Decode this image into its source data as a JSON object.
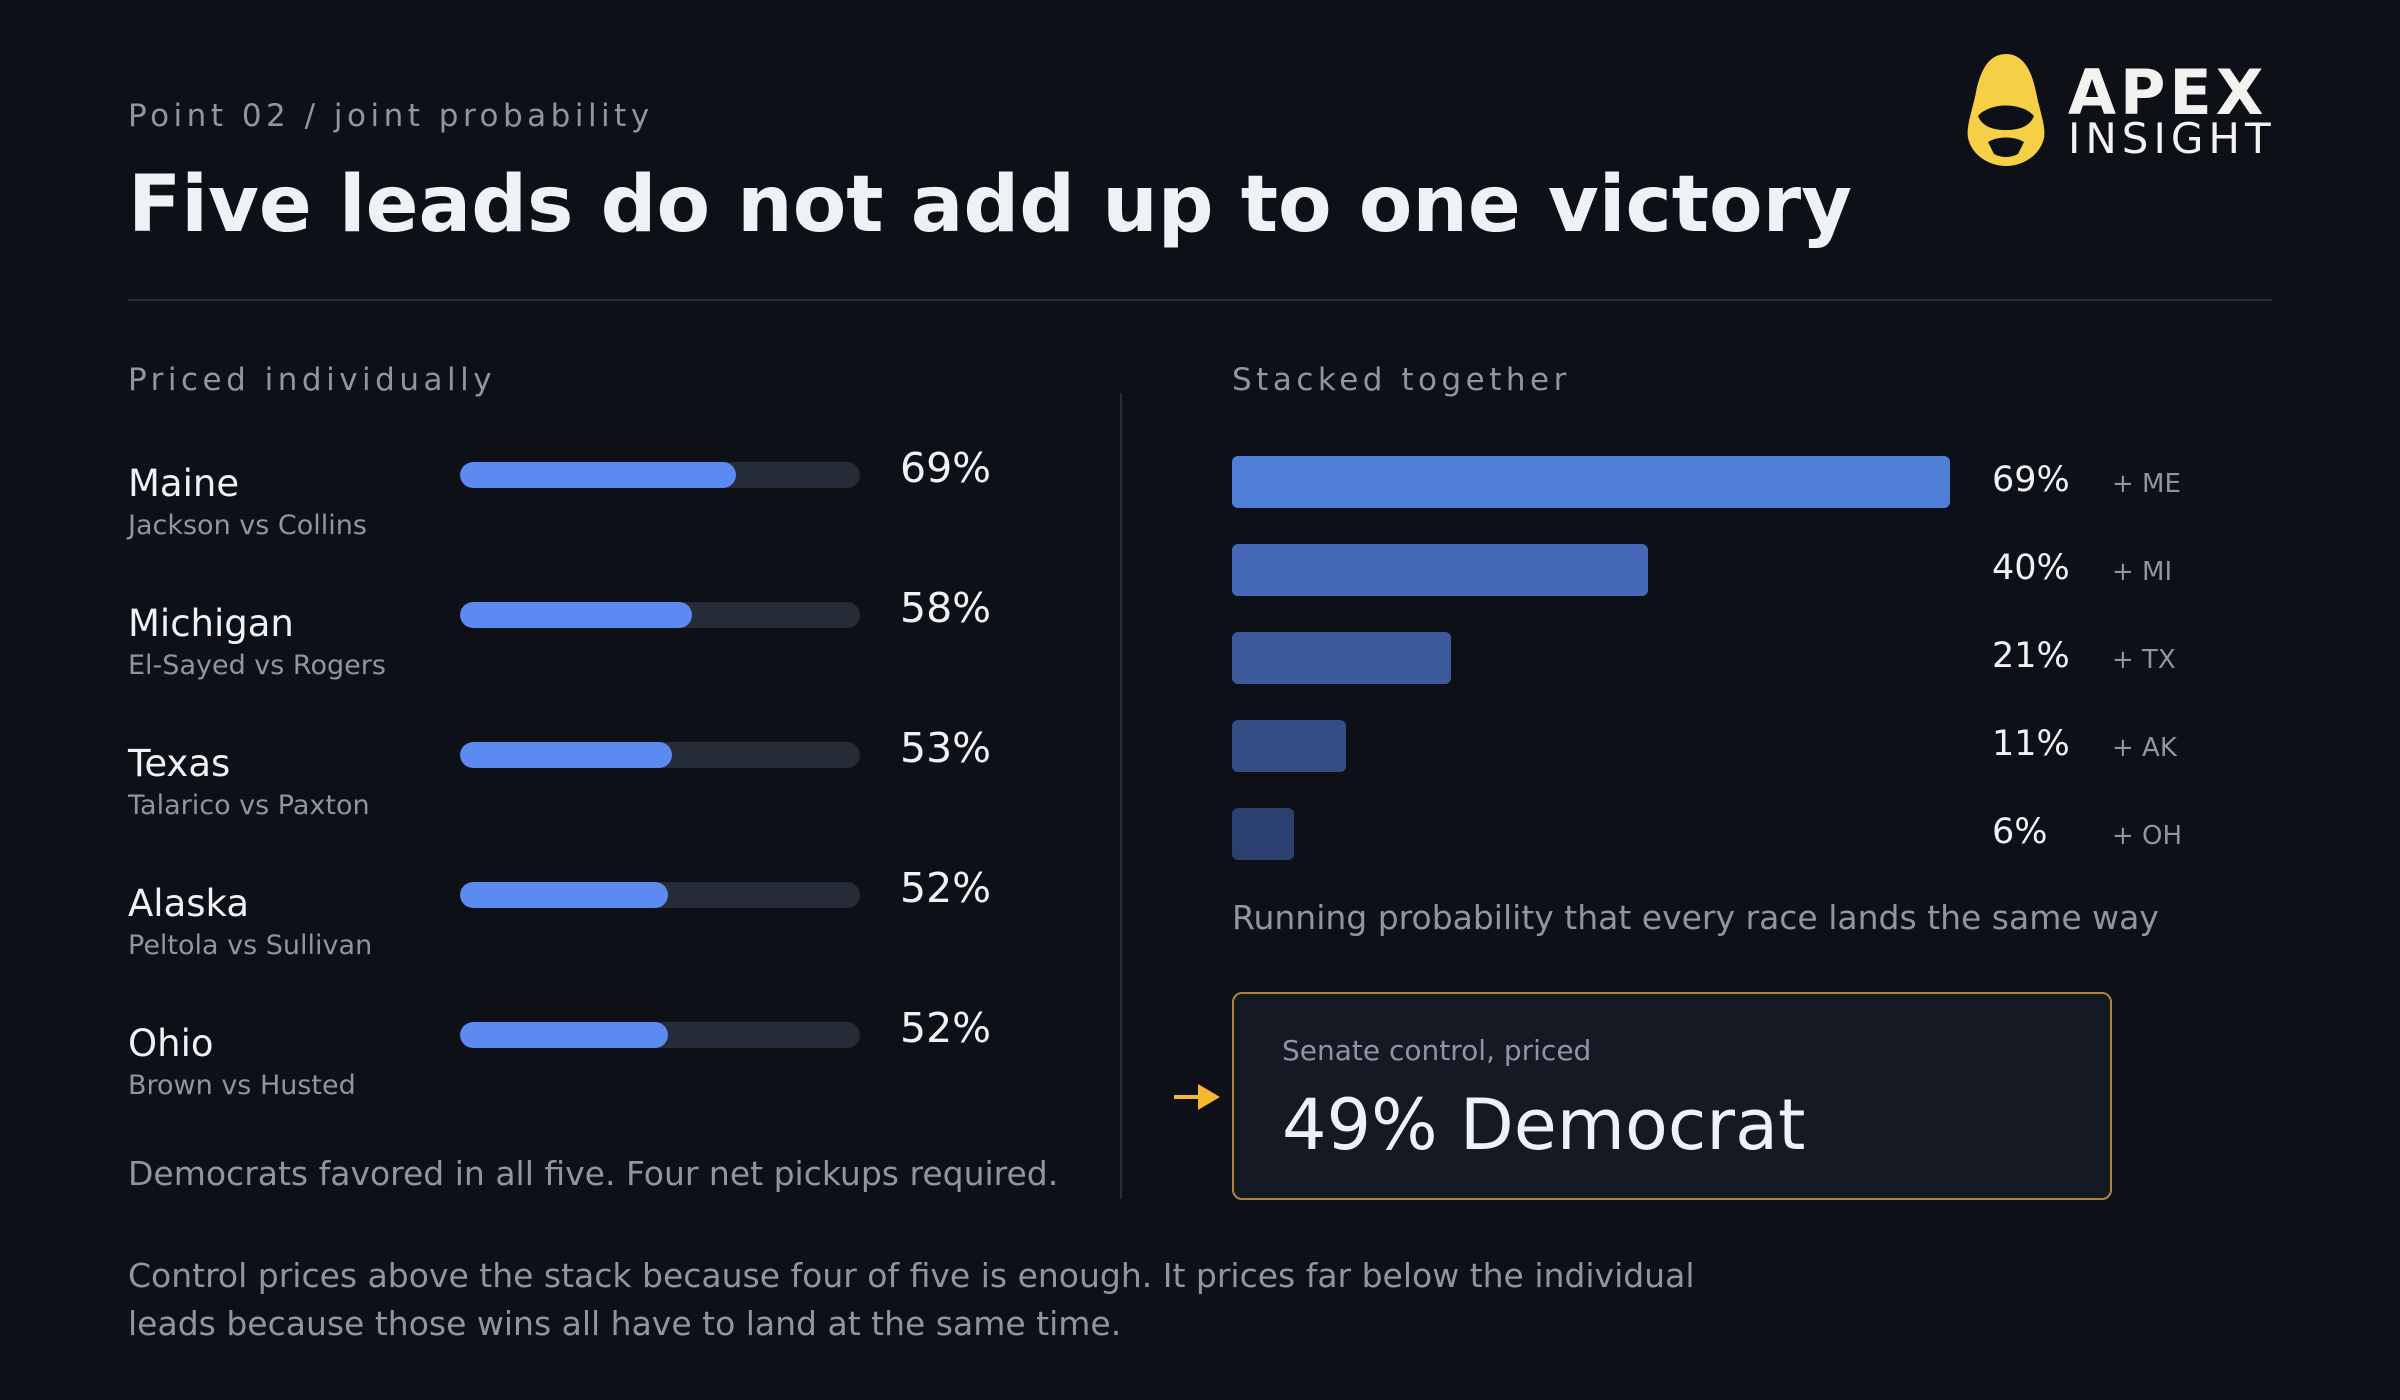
{
  "header": {
    "eyebrow": "Point 02 / joint probability",
    "title": "Five leads do not add up to one victory"
  },
  "logo": {
    "word1": "APEX",
    "word2": "INSIGHT",
    "color": "#f5cf45"
  },
  "left_panel": {
    "label": "Priced individually",
    "note": "Democrats favored in all five. Four net pickups required."
  },
  "right_panel": {
    "label": "Stacked together",
    "caption": "Running probability that every race lands the same way"
  },
  "callout": {
    "label": "Senate control, priced",
    "value": "49% Democrat",
    "arrow_color": "#f5b82e"
  },
  "footer": "Control prices above the stack because four of five is enough. It prices far below the individual leads because those wins all have to land at the same time.",
  "chart_data": [
    {
      "type": "bar",
      "orientation": "horizontal",
      "title": "Priced individually",
      "categories": [
        "Maine",
        "Michigan",
        "Texas",
        "Alaska",
        "Ohio"
      ],
      "subtitles": [
        "Jackson vs Collins",
        "El-Sayed vs Rogers",
        "Talarico vs Paxton",
        "Peltola vs Sullivan",
        "Brown vs Husted"
      ],
      "values": [
        69,
        58,
        53,
        52,
        52
      ],
      "labels": [
        "69%",
        "58%",
        "53%",
        "52%",
        "52%"
      ],
      "xlim": [
        0,
        100
      ],
      "color": "#5b8af0"
    },
    {
      "type": "bar",
      "orientation": "horizontal",
      "title": "Stacked together",
      "categories": [
        "+ ME",
        "+ MI",
        "+ TX",
        "+ AK",
        "+ OH"
      ],
      "values": [
        69,
        40,
        21,
        11,
        6
      ],
      "labels": [
        "69%",
        "40%",
        "21%",
        "11%",
        "6%"
      ],
      "xlim": [
        0,
        69
      ],
      "colors": [
        "#4f7fd6",
        "#4569b8",
        "#3b5a9c",
        "#334d85",
        "#2c4070"
      ]
    }
  ]
}
